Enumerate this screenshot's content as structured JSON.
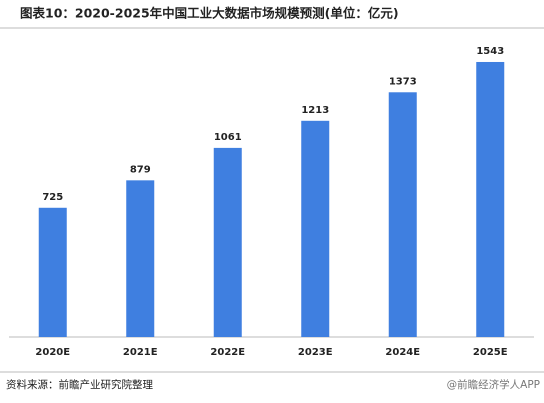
{
  "chart_data": {
    "type": "bar",
    "title": "图表10：2020-2025年中国工业大数据市场规模预测(单位：亿元)",
    "categories": [
      "2020E",
      "2021E",
      "2022E",
      "2023E",
      "2024E",
      "2025E"
    ],
    "values": [
      725,
      879,
      1061,
      1213,
      1373,
      1543
    ],
    "color": "#3f7fe0",
    "ylim": [
      0,
      1700
    ],
    "source": "资料来源：前瞻产业研究院整理",
    "watermark": "@前瞻经济学人APP"
  }
}
